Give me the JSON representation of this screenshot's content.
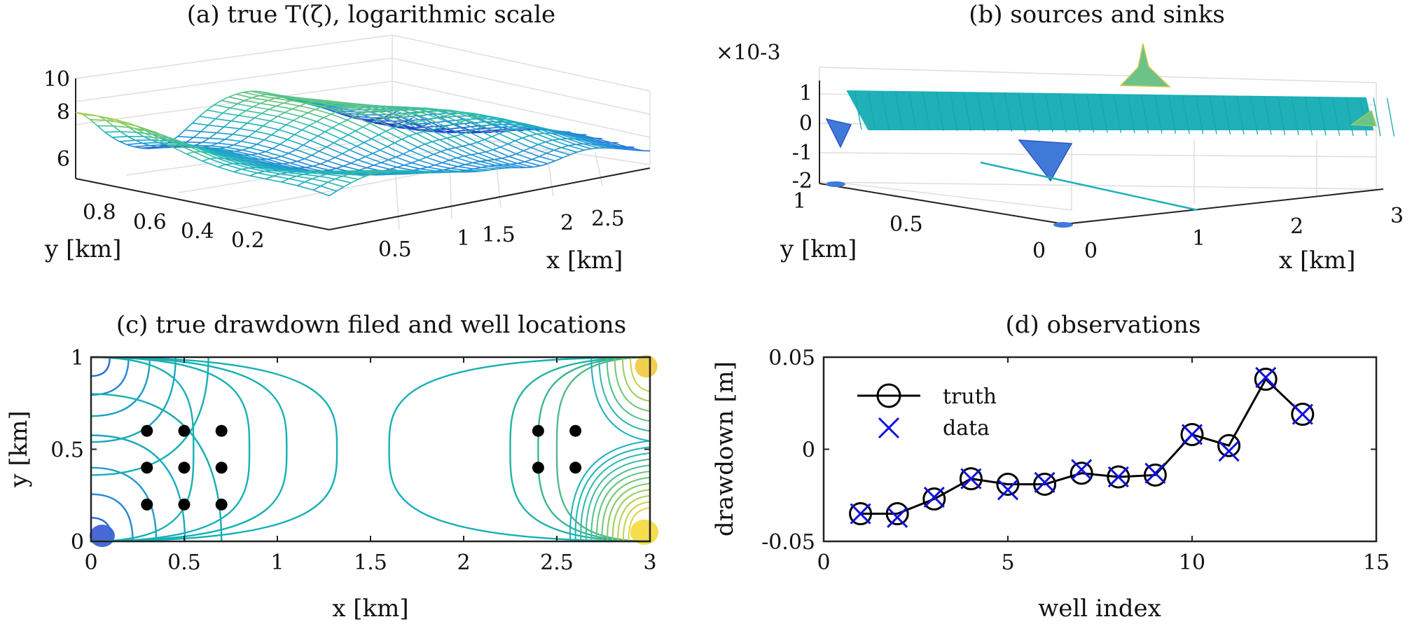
{
  "chart_data": [
    {
      "panel": "a",
      "type": "surface",
      "title": "(a) true T(ζ), logarithmic scale",
      "xlabel": "x [km]",
      "ylabel": "y [km]",
      "x_ticks": [
        "0.5",
        "1",
        "1.5",
        "2",
        "2.5"
      ],
      "y_ticks": [
        "0.8",
        "0.6",
        "0.4",
        "0.2"
      ],
      "z_ticks": [
        "10",
        "8",
        "6"
      ],
      "xlim": [
        0,
        3
      ],
      "ylim": [
        0,
        1
      ],
      "zlim": [
        5,
        10
      ],
      "colormap": [
        "#2a3fd0",
        "#1f8fd8",
        "#1fb7b7",
        "#7bc96a",
        "#f2d93a"
      ]
    },
    {
      "panel": "b",
      "type": "surface",
      "title": "(b) sources and sinks",
      "multiplier": "×10-3",
      "xlabel": "x [km]",
      "ylabel": "y [km]",
      "x_ticks": [
        "0",
        "1",
        "2",
        "3"
      ],
      "y_ticks": [
        "1",
        "0.5",
        "0"
      ],
      "z_ticks": [
        "1",
        "0",
        "-1",
        "-2"
      ],
      "xlim": [
        0,
        3
      ],
      "ylim": [
        0,
        1
      ],
      "zlim": [
        -2,
        1.5
      ],
      "base_color": "#1fb0b8"
    },
    {
      "panel": "c",
      "type": "contour",
      "title": "(c) true drawdown filed and well locations",
      "xlabel": "x [km]",
      "ylabel": "y [km]",
      "x_ticks": [
        "0",
        "0.5",
        "1",
        "1.5",
        "2",
        "2.5",
        "3"
      ],
      "y_ticks": [
        "0",
        "0.5",
        "1"
      ],
      "xlim": [
        0,
        3
      ],
      "ylim": [
        0,
        1
      ],
      "wells": [
        {
          "x": 0.3,
          "y": 0.6
        },
        {
          "x": 0.5,
          "y": 0.6
        },
        {
          "x": 0.7,
          "y": 0.6
        },
        {
          "x": 0.3,
          "y": 0.4
        },
        {
          "x": 0.5,
          "y": 0.4
        },
        {
          "x": 0.7,
          "y": 0.4
        },
        {
          "x": 0.3,
          "y": 0.2
        },
        {
          "x": 0.5,
          "y": 0.2
        },
        {
          "x": 0.7,
          "y": 0.2
        },
        {
          "x": 2.4,
          "y": 0.6
        },
        {
          "x": 2.6,
          "y": 0.6
        },
        {
          "x": 2.4,
          "y": 0.4
        },
        {
          "x": 2.6,
          "y": 0.4
        }
      ]
    },
    {
      "panel": "d",
      "type": "line",
      "title": "(d) observations",
      "xlabel": "well index",
      "ylabel": "drawdown [m]",
      "x_ticks": [
        "0",
        "5",
        "10",
        "15"
      ],
      "y_ticks": [
        "0.05",
        "0",
        "-0.05"
      ],
      "xlim": [
        0,
        15
      ],
      "ylim": [
        -0.05,
        0.05
      ],
      "legend_position": "top-left",
      "series": [
        {
          "name": "truth",
          "marker": "circle",
          "color": "#000000",
          "x": [
            1,
            2,
            3,
            4,
            5,
            6,
            7,
            8,
            9,
            10,
            11,
            12,
            13
          ],
          "y": [
            -0.035,
            -0.035,
            -0.027,
            -0.016,
            -0.019,
            -0.019,
            -0.013,
            -0.015,
            -0.014,
            0.008,
            0.002,
            0.038,
            0.019
          ]
        },
        {
          "name": "data",
          "marker": "x",
          "color": "#1010e0",
          "x": [
            1,
            2,
            3,
            4,
            5,
            6,
            7,
            8,
            9,
            10,
            11,
            12,
            13
          ],
          "y": [
            -0.035,
            -0.037,
            -0.026,
            -0.016,
            -0.022,
            -0.018,
            -0.011,
            -0.015,
            -0.013,
            0.008,
            -0.001,
            0.039,
            0.019
          ]
        }
      ]
    }
  ]
}
